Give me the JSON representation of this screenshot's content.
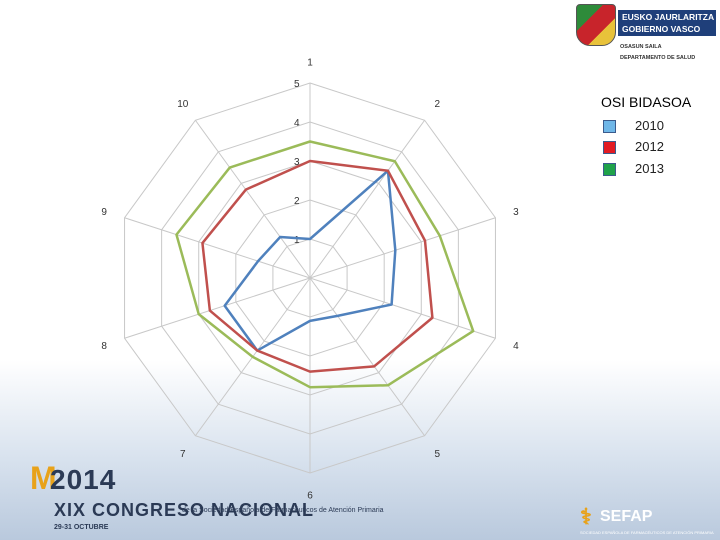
{
  "header_logo": {
    "line1": "EUSKO JAURLARITZA",
    "line2": "GOBIERNO VASCO",
    "dept1": "OSASUN SAILA",
    "dept2": "DEPARTAMENTO DE SALUD"
  },
  "chart_data": {
    "type": "radar",
    "title": "OSI BIDASOA",
    "categories": [
      "1",
      "2",
      "3",
      "4",
      "5",
      "6",
      "7",
      "8",
      "9",
      "10"
    ],
    "rings": [
      "1",
      "2",
      "3",
      "4",
      "5"
    ],
    "r_range": [
      0,
      5
    ],
    "grid": true,
    "legend_position": "right",
    "series": [
      {
        "name": "2010",
        "color": "#4f81bd",
        "values": [
          1,
          3.4,
          2.3,
          2.2,
          1.2,
          1.1,
          2.3,
          2.3,
          1.4,
          1.3
        ]
      },
      {
        "name": "2012",
        "color": "#c0504d",
        "values": [
          3,
          3.4,
          3.1,
          3.3,
          2.8,
          2.4,
          2.3,
          2.7,
          2.9,
          2.8
        ]
      },
      {
        "name": "2013",
        "color": "#9bbb59",
        "values": [
          3.5,
          3.7,
          3.5,
          4.4,
          3.4,
          2.8,
          2.5,
          3.0,
          3.6,
          3.5
        ]
      }
    ]
  },
  "legend_colors": {
    "2010": "#6fb7e8",
    "2012": "#e21b23",
    "2013": "#1fa24a"
  },
  "congress": {
    "m": "M",
    "year": "2014",
    "title": "XIX CONGRESO NACIONAL",
    "subtitle": "de la Sociedad Española de Farmacéuticos de Atención Primaria",
    "dates": "29-31 OCTUBRE"
  },
  "sefap": {
    "name": "SEFAP",
    "sub": "SOCIEDAD ESPAÑOLA DE FARMACÉUTICOS DE ATENCIÓN PRIMARIA",
    "icon": "pharmacy-cross-icon"
  }
}
